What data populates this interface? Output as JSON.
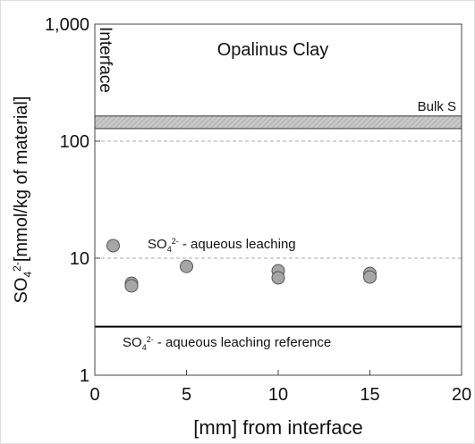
{
  "chart_data": {
    "type": "scatter",
    "title": "Opalinus Clay",
    "interface_label": "Interface",
    "x_label": "[mm] from interface",
    "y_label": [
      "SO",
      "4",
      "2-",
      "[mmol/kg of material]"
    ],
    "x": [
      1,
      2,
      2,
      5,
      10,
      10,
      15,
      15
    ],
    "values": [
      12.8,
      6.1,
      5.8,
      8.5,
      7.8,
      6.8,
      7.4,
      6.9
    ],
    "color": "#a6a6a6",
    "xlim": [
      0,
      20
    ],
    "xticks": [
      0,
      5,
      10,
      15,
      20
    ],
    "ylim": [
      1,
      1000
    ],
    "yticks": [
      1,
      10,
      100,
      {
        "value": 1000,
        "label": "1,000"
      }
    ],
    "log_y": true,
    "grid": true,
    "bulk_s": {
      "label": "Bulk S",
      "range": [
        128,
        164
      ],
      "color": "#c0c0c0"
    },
    "leaching_label": [
      "SO",
      "4",
      "2-",
      " - aqueous leaching"
    ],
    "reference": {
      "label": [
        "SO",
        "4",
        "2-",
        " - aqueous leaching reference"
      ],
      "value": 2.6
    }
  }
}
